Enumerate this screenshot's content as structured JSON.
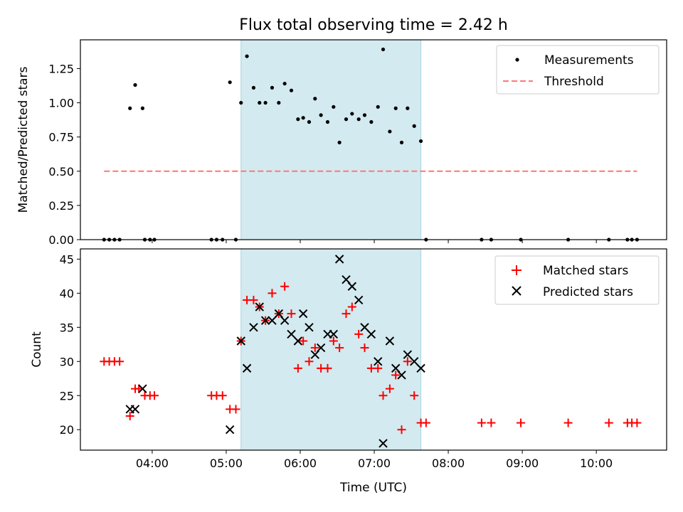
{
  "chart_data": [
    {
      "type": "scatter",
      "title": "Flux total observing time = 2.42 h",
      "ylabel": "Matched/Predicted stars",
      "xlabel": "",
      "ylim": [
        0,
        1.46
      ],
      "yticks": [
        0.0,
        0.25,
        0.5,
        0.75,
        1.0,
        1.25
      ],
      "ytick_labels": [
        "0.00",
        "0.25",
        "0.50",
        "0.75",
        "1.00",
        "1.25"
      ],
      "xlim_hours": [
        3.03,
        10.95
      ],
      "shaded_span_hours": [
        5.2,
        7.63
      ],
      "shaded_color": "#d3eaf0",
      "legend_position": "upper right",
      "series": [
        {
          "name": "Measurements",
          "marker": "dot",
          "color": "#000000",
          "x": [
            3.35,
            3.42,
            3.49,
            3.56,
            3.7,
            3.77,
            3.87,
            3.9,
            3.97,
            4.03,
            4.8,
            4.87,
            4.95,
            5.05,
            5.13,
            5.2,
            5.28,
            5.37,
            5.45,
            5.53,
            5.62,
            5.71,
            5.79,
            5.88,
            5.97,
            6.04,
            6.12,
            6.2,
            6.28,
            6.37,
            6.45,
            6.53,
            6.62,
            6.7,
            6.79,
            6.87,
            6.96,
            7.05,
            7.12,
            7.21,
            7.29,
            7.37,
            7.45,
            7.54,
            7.63,
            7.7,
            8.45,
            8.58,
            8.98,
            9.62,
            10.17,
            10.42,
            10.48,
            10.55
          ],
          "y": [
            0,
            0,
            0,
            0,
            0.96,
            1.13,
            0.96,
            0,
            0,
            0,
            0,
            0,
            0,
            1.15,
            0,
            1.0,
            1.34,
            1.11,
            1.0,
            1.0,
            1.11,
            1.0,
            1.14,
            1.09,
            0.88,
            0.89,
            0.86,
            1.03,
            0.91,
            0.86,
            0.97,
            0.71,
            0.88,
            0.92,
            0.88,
            0.91,
            0.86,
            0.97,
            1.39,
            0.79,
            0.96,
            0.71,
            0.96,
            0.83,
            0.72,
            0,
            0,
            0,
            0,
            0,
            0,
            0,
            0,
            0
          ]
        },
        {
          "name": "Threshold",
          "marker": "dashed-line",
          "color": "#ff7777",
          "x": [
            3.35,
            10.55
          ],
          "y": [
            0.5,
            0.5
          ]
        }
      ]
    },
    {
      "type": "scatter",
      "title": "",
      "ylabel": "Count",
      "xlabel": "Time (UTC)",
      "ylim": [
        17,
        46.5
      ],
      "yticks": [
        20,
        25,
        30,
        35,
        40,
        45
      ],
      "ytick_labels": [
        "20",
        "25",
        "30",
        "35",
        "40",
        "45"
      ],
      "xlim_hours": [
        3.03,
        10.95
      ],
      "xticks_hours": [
        4,
        5,
        6,
        7,
        8,
        9,
        10
      ],
      "xtick_labels": [
        "04:00",
        "05:00",
        "06:00",
        "07:00",
        "08:00",
        "09:00",
        "10:00"
      ],
      "shaded_span_hours": [
        5.2,
        7.63
      ],
      "shaded_color": "#d3eaf0",
      "legend_position": "upper right",
      "series": [
        {
          "name": "Matched stars",
          "marker": "plus",
          "color": "#ff0000",
          "x": [
            3.35,
            3.42,
            3.49,
            3.56,
            3.7,
            3.77,
            3.82,
            3.9,
            3.97,
            4.03,
            4.8,
            4.87,
            4.95,
            5.05,
            5.13,
            5.2,
            5.28,
            5.37,
            5.45,
            5.53,
            5.62,
            5.71,
            5.79,
            5.88,
            5.97,
            6.04,
            6.12,
            6.2,
            6.28,
            6.37,
            6.45,
            6.53,
            6.62,
            6.7,
            6.79,
            6.87,
            6.96,
            7.05,
            7.12,
            7.21,
            7.29,
            7.37,
            7.45,
            7.54,
            7.63,
            7.7,
            8.45,
            8.58,
            8.98,
            9.62,
            10.17,
            10.42,
            10.48,
            10.55
          ],
          "y": [
            30,
            30,
            30,
            30,
            22,
            26,
            26,
            25,
            25,
            25,
            25,
            25,
            25,
            23,
            23,
            33,
            39,
            39,
            38,
            36,
            40,
            37,
            41,
            37,
            29,
            33,
            30,
            32,
            29,
            29,
            33,
            32,
            37,
            38,
            34,
            32,
            29,
            29,
            25,
            26,
            28,
            20,
            30,
            25,
            21,
            21,
            21,
            21,
            21,
            21,
            21,
            21,
            21,
            21
          ]
        },
        {
          "name": "Predicted stars",
          "marker": "x",
          "color": "#000000",
          "x": [
            3.7,
            3.77,
            3.87,
            5.05,
            5.2,
            5.28,
            5.37,
            5.45,
            5.53,
            5.62,
            5.71,
            5.79,
            5.88,
            5.97,
            6.04,
            6.12,
            6.2,
            6.28,
            6.37,
            6.45,
            6.53,
            6.62,
            6.7,
            6.79,
            6.87,
            6.96,
            7.05,
            7.12,
            7.21,
            7.29,
            7.37,
            7.45,
            7.54,
            7.63
          ],
          "y": [
            23,
            23,
            26,
            20,
            33,
            29,
            35,
            38,
            36,
            36,
            37,
            36,
            34,
            33,
            37,
            35,
            31,
            32,
            34,
            34,
            45,
            42,
            41,
            39,
            35,
            34,
            30,
            18,
            33,
            29,
            28,
            31,
            30,
            29
          ]
        }
      ]
    }
  ]
}
